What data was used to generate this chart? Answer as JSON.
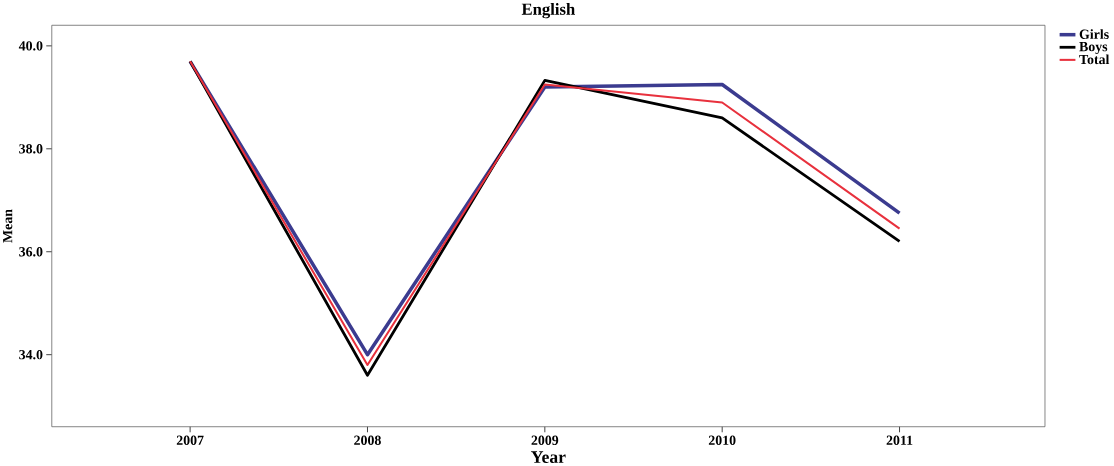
{
  "chart_data": {
    "type": "line",
    "title": "English",
    "xlabel": "Year",
    "ylabel": "Mean",
    "x": [
      2007,
      2008,
      2009,
      2010,
      2011
    ],
    "series": [
      {
        "name": "Girls",
        "color": "#3b3b8f",
        "values": [
          39.7,
          34.0,
          39.2,
          39.25,
          36.75
        ]
      },
      {
        "name": "Boys",
        "color": "#000000",
        "values": [
          39.7,
          33.6,
          39.33,
          38.6,
          36.2
        ]
      },
      {
        "name": "Total",
        "color": "#e8313d",
        "values": [
          39.7,
          33.8,
          39.25,
          38.9,
          36.45
        ]
      }
    ],
    "xlim": [
      2006.22,
      2011.82
    ],
    "ylim": [
      32.6,
      40.4
    ],
    "xticks": [
      2007,
      2008,
      2009,
      2010,
      2011
    ],
    "yticks": [
      {
        "value": 34,
        "label": "34.0"
      },
      {
        "value": 36,
        "label": "36.0"
      },
      {
        "value": 38,
        "label": "38.0"
      },
      {
        "value": 40,
        "label": "40.0"
      }
    ],
    "grid": false,
    "legend": "top right",
    "marker": "none",
    "line_style": "solid"
  }
}
